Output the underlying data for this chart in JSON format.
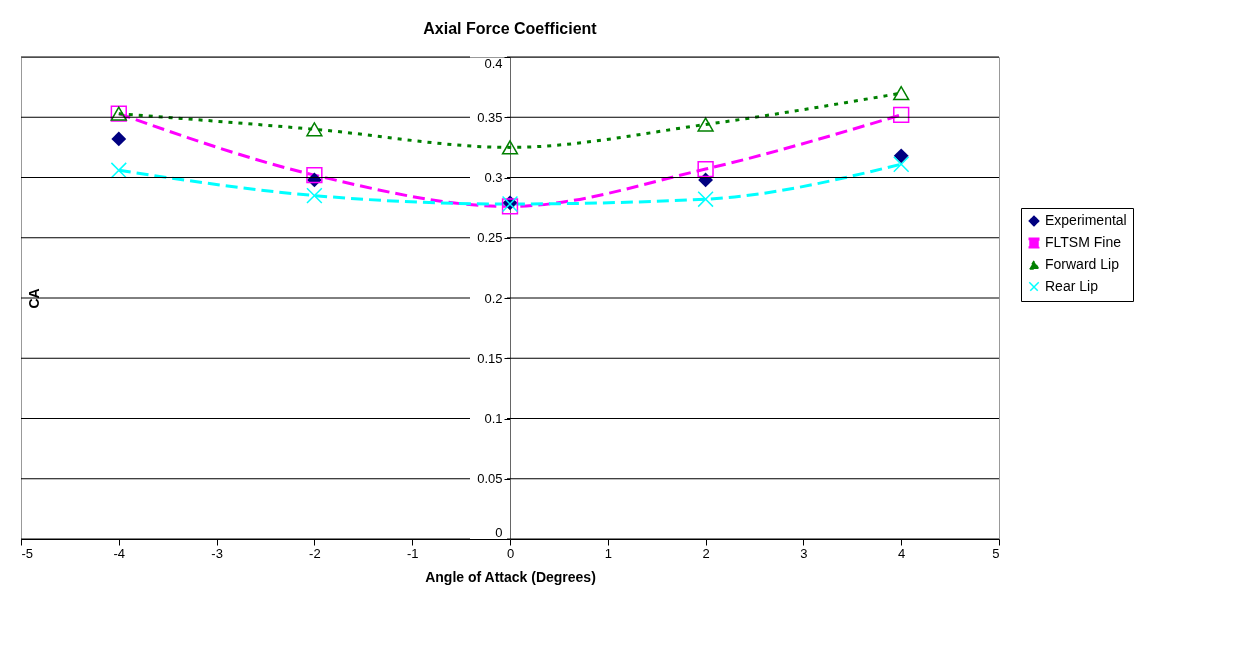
{
  "chart_data": {
    "type": "line",
    "title": "Axial Force Coefficient",
    "xlabel": "Angle of Attack (Degrees)",
    "ylabel": "CA",
    "x": [
      -4,
      -2,
      0,
      2,
      4
    ],
    "series": [
      {
        "name": "Experimental",
        "type": "scatter",
        "color": "#000080",
        "marker": "diamond",
        "values": [
          0.332,
          0.298,
          0.279,
          0.298,
          0.318
        ]
      },
      {
        "name": "FLTSM Fine",
        "color": "#ff00ff",
        "marker": "square",
        "line_style": "dashed",
        "values": [
          0.353,
          0.302,
          0.276,
          0.307,
          0.352
        ]
      },
      {
        "name": "Forward Lip",
        "color": "#008000",
        "marker": "triangle",
        "line_style": "dotted",
        "values": [
          0.353,
          0.34,
          0.325,
          0.344,
          0.37
        ]
      },
      {
        "name": "Rear Lip",
        "color": "#00ffff",
        "marker": "cross",
        "line_style": "dashed",
        "values": [
          0.306,
          0.285,
          0.278,
          0.282,
          0.311
        ]
      }
    ],
    "xlim": [
      -5,
      5
    ],
    "xticks": [
      -5,
      -4,
      -3,
      -2,
      -1,
      0,
      1,
      2,
      3,
      4,
      5
    ],
    "ylim": [
      0,
      0.4
    ],
    "yticks": [
      0,
      0.05,
      0.1,
      0.15,
      0.2,
      0.25,
      0.3,
      0.35,
      0.4
    ],
    "grid": "y",
    "legend": "right"
  }
}
